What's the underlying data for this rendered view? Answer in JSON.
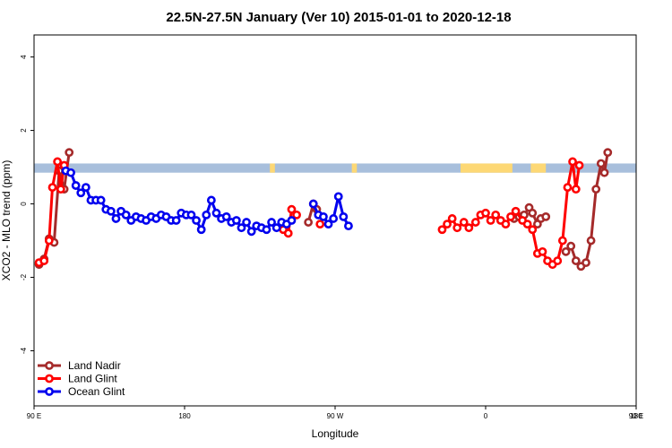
{
  "chart_data": {
    "type": "line",
    "title": "22.5N-27.5N January (Ver 10)   2015-01-01 to 2020-12-18",
    "xlabel": "Longitude",
    "ylabel": "XCO2 - MLO trend (ppm)",
    "xlim": [
      90,
      450
    ],
    "ylim": [
      -5.5,
      4.6
    ],
    "x_ticks": [
      90,
      180,
      270,
      360,
      450,
      540
    ],
    "x_tick_labels": [
      "90 E",
      "180",
      "90 W",
      "0",
      "90 E",
      "180"
    ],
    "y_ticks": [
      -4,
      -2,
      0,
      2,
      4
    ],
    "y_tick_labels": [
      "-4",
      "-2",
      "0",
      "2",
      "4"
    ],
    "land_ocean_band": {
      "y_range": [
        0.85,
        1.1
      ],
      "ocean_color": "#a8bfdc",
      "land_color": "#fdd875",
      "land_spans": [
        [
          231,
          234
        ],
        [
          280,
          283
        ],
        [
          345,
          376
        ],
        [
          387,
          396
        ]
      ]
    },
    "legend": {
      "position": "bottom-left",
      "entries": [
        "Land Nadir",
        "Land Glint",
        "Ocean Glint"
      ]
    },
    "series": [
      {
        "name": "Land Nadir",
        "color": "#a52a2a",
        "segments": [
          [
            [
              93,
              -1.65
            ],
            [
              96,
              -1.5
            ],
            [
              99,
              -0.95
            ],
            [
              102,
              -1.05
            ],
            [
              105,
              0.9
            ],
            [
              108,
              0.4
            ],
            [
              111,
              1.4
            ]
          ],
          [
            [
              254,
              -0.5
            ],
            [
              257,
              0.0
            ],
            [
              259,
              -0.15
            ]
          ],
          [
            [
              377,
              -0.4
            ],
            [
              380,
              -0.35
            ],
            [
              383,
              -0.3
            ],
            [
              386,
              -0.1
            ],
            [
              388,
              -0.25
            ],
            [
              391,
              -0.55
            ],
            [
              393,
              -0.4
            ],
            [
              396,
              -0.35
            ]
          ],
          [
            [
              408,
              -1.3
            ],
            [
              411,
              -1.15
            ],
            [
              414,
              -1.55
            ],
            [
              417,
              -1.7
            ],
            [
              420,
              -1.6
            ],
            [
              423,
              -1.0
            ],
            [
              426,
              0.4
            ],
            [
              429,
              1.1
            ],
            [
              431,
              0.85
            ],
            [
              433,
              1.4
            ]
          ]
        ]
      },
      {
        "name": "Land Glint",
        "color": "#ff0000",
        "segments": [
          [
            [
              93,
              -1.6
            ],
            [
              96,
              -1.55
            ],
            [
              99,
              -1.0
            ],
            [
              101,
              0.45
            ],
            [
              104,
              1.15
            ],
            [
              106,
              0.4
            ],
            [
              108,
              1.05
            ]
          ],
          [
            [
              239,
              -0.7
            ],
            [
              242,
              -0.8
            ],
            [
              244,
              -0.15
            ],
            [
              247,
              -0.3
            ]
          ],
          [
            [
              261,
              -0.55
            ]
          ],
          [
            [
              334,
              -0.7
            ],
            [
              337,
              -0.55
            ],
            [
              340,
              -0.4
            ],
            [
              343,
              -0.65
            ],
            [
              347,
              -0.5
            ],
            [
              350,
              -0.65
            ],
            [
              354,
              -0.5
            ],
            [
              357,
              -0.3
            ],
            [
              360,
              -0.25
            ],
            [
              363,
              -0.45
            ],
            [
              366,
              -0.3
            ],
            [
              369,
              -0.45
            ],
            [
              372,
              -0.55
            ],
            [
              375,
              -0.35
            ],
            [
              378,
              -0.2
            ],
            [
              382,
              -0.45
            ],
            [
              385,
              -0.55
            ],
            [
              388,
              -0.7
            ],
            [
              391,
              -1.35
            ],
            [
              394,
              -1.3
            ],
            [
              397,
              -1.55
            ],
            [
              400,
              -1.65
            ],
            [
              403,
              -1.55
            ],
            [
              406,
              -1.0
            ],
            [
              409,
              0.45
            ],
            [
              412,
              1.15
            ],
            [
              414,
              0.4
            ],
            [
              416,
              1.05
            ]
          ]
        ]
      },
      {
        "name": "Ocean Glint",
        "color": "#0000ee",
        "segments": [
          [
            [
              109,
              0.9
            ],
            [
              112,
              0.85
            ],
            [
              115,
              0.5
            ],
            [
              118,
              0.3
            ],
            [
              121,
              0.45
            ],
            [
              124,
              0.1
            ],
            [
              127,
              0.1
            ],
            [
              130,
              0.1
            ],
            [
              133,
              -0.15
            ],
            [
              136,
              -0.2
            ],
            [
              139,
              -0.4
            ],
            [
              142,
              -0.2
            ],
            [
              145,
              -0.3
            ],
            [
              148,
              -0.45
            ],
            [
              151,
              -0.35
            ],
            [
              154,
              -0.4
            ],
            [
              157,
              -0.45
            ],
            [
              160,
              -0.35
            ],
            [
              163,
              -0.4
            ],
            [
              166,
              -0.3
            ],
            [
              169,
              -0.35
            ],
            [
              172,
              -0.45
            ],
            [
              175,
              -0.45
            ],
            [
              178,
              -0.25
            ],
            [
              181,
              -0.3
            ],
            [
              184,
              -0.3
            ],
            [
              187,
              -0.45
            ],
            [
              190,
              -0.7
            ],
            [
              193,
              -0.3
            ],
            [
              196,
              0.1
            ],
            [
              199,
              -0.25
            ],
            [
              202,
              -0.4
            ],
            [
              205,
              -0.35
            ],
            [
              208,
              -0.5
            ],
            [
              211,
              -0.45
            ],
            [
              214,
              -0.65
            ],
            [
              217,
              -0.5
            ],
            [
              220,
              -0.75
            ],
            [
              223,
              -0.6
            ],
            [
              226,
              -0.65
            ],
            [
              229,
              -0.7
            ],
            [
              232,
              -0.5
            ],
            [
              235,
              -0.65
            ],
            [
              238,
              -0.5
            ],
            [
              241,
              -0.55
            ],
            [
              244,
              -0.45
            ]
          ],
          [
            [
              257,
              0.0
            ],
            [
              260,
              -0.3
            ],
            [
              263,
              -0.35
            ],
            [
              266,
              -0.55
            ],
            [
              269,
              -0.4
            ],
            [
              272,
              0.2
            ],
            [
              275,
              -0.35
            ],
            [
              278,
              -0.6
            ]
          ]
        ]
      }
    ]
  }
}
